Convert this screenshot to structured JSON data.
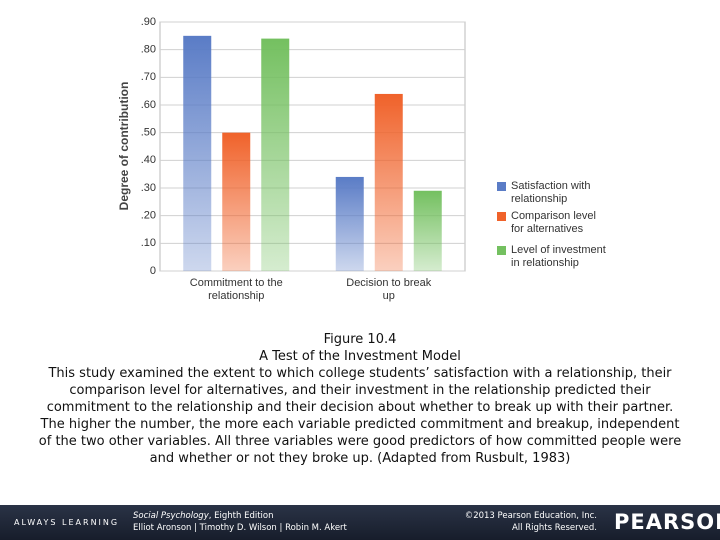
{
  "chart_data": {
    "type": "bar",
    "y_label": "Degree of contribution",
    "categories": [
      "Commitment to the relationship",
      "Decision to break up"
    ],
    "series": [
      {
        "name": "Satisfaction with relationship",
        "color": "#5a7cc6",
        "values": [
          0.85,
          0.34
        ]
      },
      {
        "name": "Comparison level for alternatives",
        "color": "#f0622a",
        "values": [
          0.5,
          0.64
        ]
      },
      {
        "name": "Level of investment in relationship",
        "color": "#74c060",
        "values": [
          0.84,
          0.29
        ]
      }
    ],
    "ylim": [
      0,
      0.9
    ],
    "yticks": [
      0,
      {
        "value": 0.1,
        "label": ".10"
      },
      {
        "value": 0.2,
        "label": ".20"
      },
      {
        "value": 0.3,
        "label": ".30"
      },
      {
        "value": 0.4,
        "label": ".40"
      },
      {
        "value": 0.5,
        "label": ".50"
      },
      {
        "value": 0.6,
        "label": ".60"
      },
      {
        "value": 0.7,
        "label": ".70"
      },
      {
        "value": 0.8,
        "label": ".80"
      },
      {
        "value": 0.9,
        "label": ".90"
      }
    ],
    "grid": true
  },
  "caption": {
    "figure": "Figure 10.4",
    "title": "A Test of the Investment Model",
    "text": "This study examined the extent to which college students’ satisfaction with a relationship, their comparison level for alternatives, and their investment in the relationship predicted their commitment to the relationship and their decision about whether to break up with their partner. The higher the number, the more each variable predicted commitment and breakup, independent of the two other variables. All three variables were good predictors of how committed people were and whether or not they broke up. (Adapted from Rusbult, 1983)"
  },
  "footer": {
    "tagline": "ALWAYS LEARNING",
    "book_title": "Social Psychology",
    "edition": ", Eighth Edition",
    "authors": "Elliot Aronson | Timothy D. Wilson | Robin M. Akert",
    "copyright": "©2013 Pearson Education, Inc.",
    "rights": "All Rights Reserved.",
    "brand": "PEARSON"
  }
}
